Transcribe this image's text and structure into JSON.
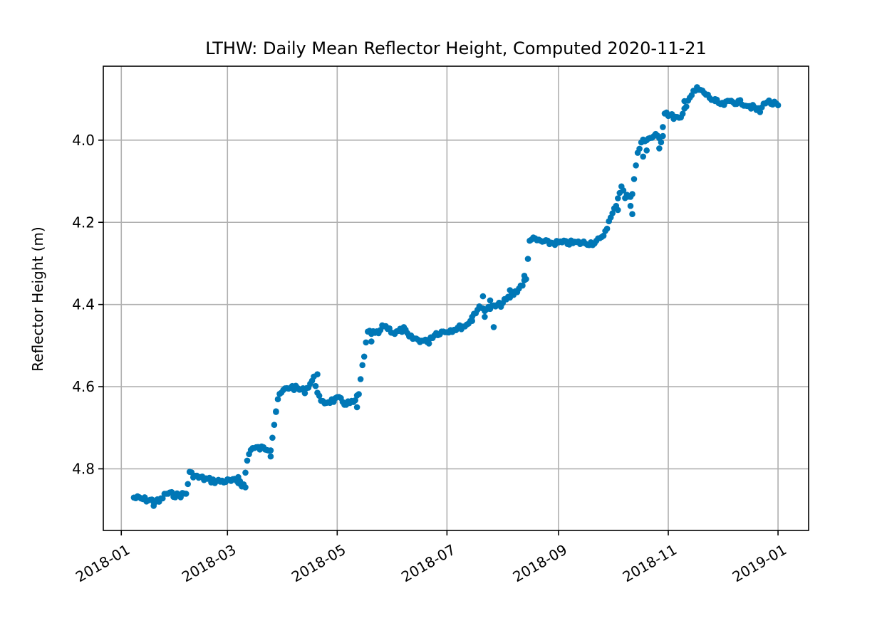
{
  "chart_data": {
    "type": "scatter",
    "title": "LTHW: Daily Mean Reflector Height, Computed 2020-11-21",
    "xlabel": "",
    "ylabel": "Reflector Height (m)",
    "x_type": "date",
    "xlim": [
      "2017-12-22",
      "2019-01-18"
    ],
    "ylim": [
      4.95,
      3.82
    ],
    "y_inverted": true,
    "grid": true,
    "legend": "none",
    "marker_color": "#0077b6",
    "x_ticks": [
      "2018-01-01",
      "2018-03-01",
      "2018-05-01",
      "2018-07-01",
      "2018-09-01",
      "2018-11-01",
      "2019-01-01"
    ],
    "x_tick_labels": [
      "2018-01",
      "2018-03",
      "2018-05",
      "2018-07",
      "2018-09",
      "2018-11",
      "2019-01"
    ],
    "y_ticks": [
      4.0,
      4.2,
      4.4,
      4.6,
      4.8
    ],
    "y_tick_labels": [
      "4.0",
      "4.2",
      "4.4",
      "4.6",
      "4.8"
    ],
    "anchors": [
      [
        "2018-01-08",
        4.87
      ],
      [
        "2018-01-15",
        4.875
      ],
      [
        "2018-01-22",
        4.88
      ],
      [
        "2018-01-26",
        4.86
      ],
      [
        "2018-02-02",
        4.865
      ],
      [
        "2018-02-06",
        4.86
      ],
      [
        "2018-02-08",
        4.81
      ],
      [
        "2018-02-12",
        4.82
      ],
      [
        "2018-02-22",
        4.83
      ],
      [
        "2018-03-06",
        4.83
      ],
      [
        "2018-03-10",
        4.84
      ],
      [
        "2018-03-12",
        4.78
      ],
      [
        "2018-03-14",
        4.75
      ],
      [
        "2018-03-25",
        4.75
      ],
      [
        "2018-03-29",
        4.63
      ],
      [
        "2018-04-01",
        4.61
      ],
      [
        "2018-04-05",
        4.6
      ],
      [
        "2018-04-13",
        4.61
      ],
      [
        "2018-04-18",
        4.58
      ],
      [
        "2018-04-22",
        4.64
      ],
      [
        "2018-05-02",
        4.63
      ],
      [
        "2018-05-05",
        4.64
      ],
      [
        "2018-05-10",
        4.64
      ],
      [
        "2018-05-13",
        4.62
      ],
      [
        "2018-05-15",
        4.55
      ],
      [
        "2018-05-18",
        4.47
      ],
      [
        "2018-05-24",
        4.47
      ],
      [
        "2018-05-27",
        4.45
      ],
      [
        "2018-06-02",
        4.47
      ],
      [
        "2018-06-07",
        4.46
      ],
      [
        "2018-06-10",
        4.48
      ],
      [
        "2018-06-19",
        4.49
      ],
      [
        "2018-06-25",
        4.47
      ],
      [
        "2018-07-05",
        4.46
      ],
      [
        "2018-07-12",
        4.45
      ],
      [
        "2018-07-18",
        4.41
      ],
      [
        "2018-07-24",
        4.41
      ],
      [
        "2018-07-31",
        4.4
      ],
      [
        "2018-08-08",
        4.37
      ],
      [
        "2018-08-14",
        4.34
      ],
      [
        "2018-08-16",
        4.24
      ],
      [
        "2018-08-26",
        4.25
      ],
      [
        "2018-09-01",
        4.25
      ],
      [
        "2018-09-10",
        4.25
      ],
      [
        "2018-09-20",
        4.25
      ],
      [
        "2018-09-25",
        4.24
      ],
      [
        "2018-09-28",
        4.21
      ],
      [
        "2018-10-02",
        4.17
      ],
      [
        "2018-10-06",
        4.11
      ],
      [
        "2018-10-08",
        4.14
      ],
      [
        "2018-10-12",
        4.13
      ],
      [
        "2018-10-15",
        4.03
      ],
      [
        "2018-10-18",
        4.0
      ],
      [
        "2018-10-25",
        3.99
      ],
      [
        "2018-10-28",
        4.0
      ],
      [
        "2018-10-30",
        3.93
      ],
      [
        "2018-11-02",
        3.94
      ],
      [
        "2018-11-08",
        3.95
      ],
      [
        "2018-11-12",
        3.9
      ],
      [
        "2018-11-17",
        3.875
      ],
      [
        "2018-11-21",
        3.885
      ],
      [
        "2018-11-25",
        3.9
      ],
      [
        "2018-12-01",
        3.915
      ],
      [
        "2018-12-06",
        3.905
      ],
      [
        "2018-12-13",
        3.91
      ],
      [
        "2018-12-18",
        3.92
      ],
      [
        "2018-12-22",
        3.93
      ],
      [
        "2018-12-25",
        3.905
      ],
      [
        "2019-01-01",
        3.915
      ]
    ],
    "outliers": [
      [
        "2018-01-19",
        4.89
      ],
      [
        "2018-01-20",
        4.88
      ],
      [
        "2018-02-01",
        4.865
      ],
      [
        "2018-03-08",
        4.83
      ],
      [
        "2018-03-07",
        4.82
      ],
      [
        "2018-03-11",
        4.845
      ],
      [
        "2018-03-25",
        4.77
      ],
      [
        "2018-03-28",
        4.66
      ],
      [
        "2018-04-20",
        4.57
      ],
      [
        "2018-05-12",
        4.65
      ],
      [
        "2018-05-20",
        4.49
      ],
      [
        "2018-06-21",
        4.495
      ],
      [
        "2018-07-15",
        4.44
      ],
      [
        "2018-07-21",
        4.38
      ],
      [
        "2018-07-22",
        4.43
      ],
      [
        "2018-07-25",
        4.39
      ],
      [
        "2018-07-27",
        4.455
      ],
      [
        "2018-08-05",
        4.365
      ],
      [
        "2018-08-13",
        4.33
      ],
      [
        "2018-10-04",
        4.17
      ],
      [
        "2018-10-11",
        4.16
      ],
      [
        "2018-10-12",
        4.18
      ],
      [
        "2018-10-18",
        4.04
      ],
      [
        "2018-10-20",
        4.025
      ],
      [
        "2018-10-27",
        4.02
      ],
      [
        "2018-10-29",
        3.99
      ],
      [
        "2018-11-10",
        3.905
      ],
      [
        "2018-11-27",
        3.905
      ]
    ]
  }
}
